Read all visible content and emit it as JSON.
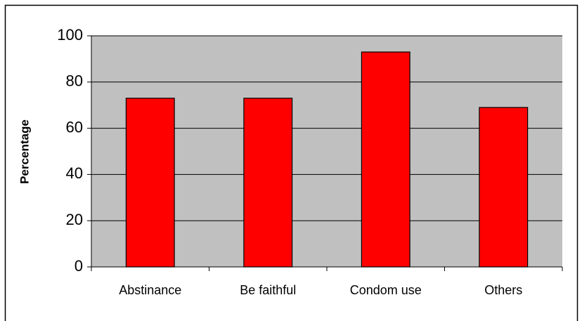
{
  "chart_data": {
    "type": "bar",
    "ylabel": "Percentage",
    "categories": [
      "Abstinance",
      "Be faithful",
      "Condom use",
      "Others"
    ],
    "values": [
      73,
      73,
      93,
      69
    ],
    "color": "#ff0000",
    "ylim": [
      0,
      100
    ],
    "yticks": [
      0,
      20,
      40,
      60,
      80,
      100
    ],
    "grid": true
  }
}
